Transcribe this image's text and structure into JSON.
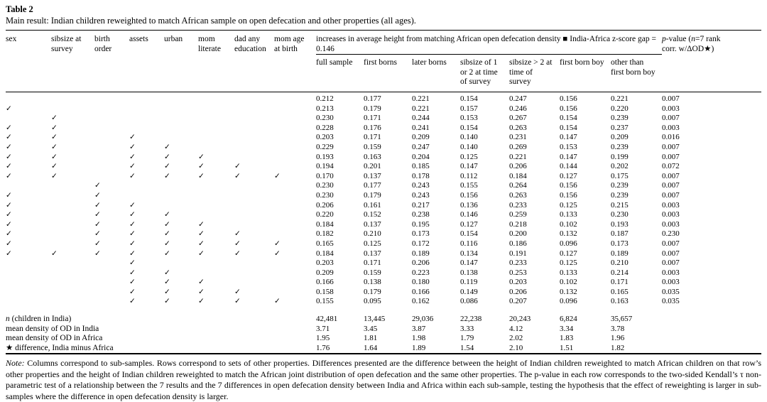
{
  "paper": {
    "table_label": "Table 2",
    "table_caption": "Main result: Indian children reweighted to match African sample on open defecation and other properties (all ages).",
    "note_label": "Note:",
    "note_body": " Columns correspond to sub-samples. Rows correspond to sets of other properties. Differences presented are the difference between the height of Indian children reweighted to match African children on that row’s other properties and the height of Indian children reweighted to match the African joint distribution of open defecation and the same other properties. The p-value in each row corresponds to the two-sided Kendall’s τ non-parametric test of a relationship between the 7 results and the 7 differences in open defecation density between India and Africa within each sub-sample, testing the hypothesis that the effect of reweighting is larger in sub-samples where the difference in open defecation density is larger."
  },
  "table": {
    "property_columns": [
      "sex",
      "sibsize at survey",
      "birth order",
      "assets",
      "urban",
      "mom literate",
      "dad any education",
      "mom age at birth"
    ],
    "span_header": "increases in average height from matching African open defecation density ■ India-Africa z-score gap = 0.146",
    "pvalue_header_parts": [
      {
        "t": "p",
        "i": 1
      },
      {
        "t": "-value (",
        "i": 0
      },
      {
        "t": "n",
        "i": 1
      },
      {
        "t": "=7 rank corr. w/ΔOD★)",
        "i": 0
      }
    ],
    "subsample_columns": [
      "full sample",
      "first borns",
      "later borns",
      "sibsize of 1 or 2 at time of survey",
      "sibsize > 2 at time of survey",
      "first born boy",
      "other than first born boy"
    ],
    "check_glyph": "✓",
    "rows": [
      {
        "checks": [
          0,
          0,
          0,
          0,
          0,
          0,
          0,
          0
        ],
        "values": [
          "0.212",
          "0.177",
          "0.221",
          "0.154",
          "0.247",
          "0.156",
          "0.221"
        ],
        "p": "0.007"
      },
      {
        "checks": [
          1,
          0,
          0,
          0,
          0,
          0,
          0,
          0
        ],
        "values": [
          "0.213",
          "0.179",
          "0.221",
          "0.157",
          "0.246",
          "0.156",
          "0.220"
        ],
        "p": "0.003"
      },
      {
        "checks": [
          0,
          1,
          0,
          0,
          0,
          0,
          0,
          0
        ],
        "values": [
          "0.230",
          "0.171",
          "0.244",
          "0.153",
          "0.267",
          "0.154",
          "0.239"
        ],
        "p": "0.007"
      },
      {
        "checks": [
          1,
          1,
          0,
          0,
          0,
          0,
          0,
          0
        ],
        "values": [
          "0.228",
          "0.176",
          "0.241",
          "0.154",
          "0.263",
          "0.154",
          "0.237"
        ],
        "p": "0.003"
      },
      {
        "checks": [
          1,
          1,
          0,
          1,
          0,
          0,
          0,
          0
        ],
        "values": [
          "0.203",
          "0.171",
          "0.209",
          "0.140",
          "0.231",
          "0.147",
          "0.209"
        ],
        "p": "0.016"
      },
      {
        "checks": [
          1,
          1,
          0,
          1,
          1,
          0,
          0,
          0
        ],
        "values": [
          "0.229",
          "0.159",
          "0.247",
          "0.140",
          "0.269",
          "0.153",
          "0.239"
        ],
        "p": "0.007"
      },
      {
        "checks": [
          1,
          1,
          0,
          1,
          1,
          1,
          0,
          0
        ],
        "values": [
          "0.193",
          "0.163",
          "0.204",
          "0.125",
          "0.221",
          "0.147",
          "0.199"
        ],
        "p": "0.007"
      },
      {
        "checks": [
          1,
          1,
          0,
          1,
          1,
          1,
          1,
          0
        ],
        "values": [
          "0.194",
          "0.201",
          "0.185",
          "0.147",
          "0.206",
          "0.144",
          "0.202"
        ],
        "p": "0.072"
      },
      {
        "checks": [
          1,
          1,
          0,
          1,
          1,
          1,
          1,
          1
        ],
        "values": [
          "0.170",
          "0.137",
          "0.178",
          "0.112",
          "0.184",
          "0.127",
          "0.175"
        ],
        "p": "0.007"
      },
      {
        "checks": [
          0,
          0,
          1,
          0,
          0,
          0,
          0,
          0
        ],
        "values": [
          "0.230",
          "0.177",
          "0.243",
          "0.155",
          "0.264",
          "0.156",
          "0.239"
        ],
        "p": "0.007"
      },
      {
        "checks": [
          1,
          0,
          1,
          0,
          0,
          0,
          0,
          0
        ],
        "values": [
          "0.230",
          "0.179",
          "0.243",
          "0.156",
          "0.263",
          "0.156",
          "0.239"
        ],
        "p": "0.007"
      },
      {
        "checks": [
          1,
          0,
          1,
          1,
          0,
          0,
          0,
          0
        ],
        "values": [
          "0.206",
          "0.161",
          "0.217",
          "0.136",
          "0.233",
          "0.125",
          "0.215"
        ],
        "p": "0.003"
      },
      {
        "checks": [
          1,
          0,
          1,
          1,
          1,
          0,
          0,
          0
        ],
        "values": [
          "0.220",
          "0.152",
          "0.238",
          "0.146",
          "0.259",
          "0.133",
          "0.230"
        ],
        "p": "0.003"
      },
      {
        "checks": [
          1,
          0,
          1,
          1,
          1,
          1,
          0,
          0
        ],
        "values": [
          "0.184",
          "0.137",
          "0.195",
          "0.127",
          "0.218",
          "0.102",
          "0.193"
        ],
        "p": "0.003"
      },
      {
        "checks": [
          1,
          0,
          1,
          1,
          1,
          1,
          1,
          0
        ],
        "values": [
          "0.182",
          "0.210",
          "0.173",
          "0.154",
          "0.200",
          "0.132",
          "0.187"
        ],
        "p": "0.230"
      },
      {
        "checks": [
          1,
          0,
          1,
          1,
          1,
          1,
          1,
          1
        ],
        "values": [
          "0.165",
          "0.125",
          "0.172",
          "0.116",
          "0.186",
          "0.096",
          "0.173"
        ],
        "p": "0.007"
      },
      {
        "checks": [
          1,
          1,
          1,
          1,
          1,
          1,
          1,
          1
        ],
        "values": [
          "0.184",
          "0.137",
          "0.189",
          "0.134",
          "0.191",
          "0.127",
          "0.189"
        ],
        "p": "0.007"
      },
      {
        "checks": [
          0,
          0,
          0,
          1,
          0,
          0,
          0,
          0
        ],
        "values": [
          "0.203",
          "0.171",
          "0.206",
          "0.147",
          "0.233",
          "0.125",
          "0.210"
        ],
        "p": "0.007"
      },
      {
        "checks": [
          0,
          0,
          0,
          1,
          1,
          0,
          0,
          0
        ],
        "values": [
          "0.209",
          "0.159",
          "0.223",
          "0.138",
          "0.253",
          "0.133",
          "0.214"
        ],
        "p": "0.003"
      },
      {
        "checks": [
          0,
          0,
          0,
          1,
          1,
          1,
          0,
          0
        ],
        "values": [
          "0.166",
          "0.138",
          "0.180",
          "0.119",
          "0.203",
          "0.102",
          "0.171"
        ],
        "p": "0.003"
      },
      {
        "checks": [
          0,
          0,
          0,
          1,
          1,
          1,
          1,
          0
        ],
        "values": [
          "0.158",
          "0.179",
          "0.166",
          "0.149",
          "0.206",
          "0.132",
          "0.165"
        ],
        "p": "0.035"
      },
      {
        "checks": [
          0,
          0,
          0,
          1,
          1,
          1,
          1,
          1
        ],
        "values": [
          "0.155",
          "0.095",
          "0.162",
          "0.086",
          "0.207",
          "0.096",
          "0.163"
        ],
        "p": "0.035"
      }
    ],
    "summary_rows": [
      {
        "label_parts": [
          {
            "t": "n",
            "i": 1
          },
          {
            "t": " (children in India)",
            "i": 0
          }
        ],
        "values": [
          "42,481",
          "13,445",
          "29,036",
          "22,238",
          "20,243",
          "6,824",
          "35,657"
        ],
        "p": ""
      },
      {
        "label_parts": [
          {
            "t": "mean density of OD in India",
            "i": 0
          }
        ],
        "values": [
          "3.71",
          "3.45",
          "3.87",
          "3.33",
          "4.12",
          "3.34",
          "3.78"
        ],
        "p": ""
      },
      {
        "label_parts": [
          {
            "t": "mean density of OD in Africa",
            "i": 0
          }
        ],
        "values": [
          "1.95",
          "1.81",
          "1.98",
          "1.79",
          "2.02",
          "1.83",
          "1.96"
        ],
        "p": ""
      },
      {
        "label_parts": [
          {
            "t": "★ difference, India minus Africa",
            "i": 0
          }
        ],
        "values": [
          "1.76",
          "1.64",
          "1.89",
          "1.54",
          "2.10",
          "1.51",
          "1.82"
        ],
        "p": ""
      }
    ]
  }
}
